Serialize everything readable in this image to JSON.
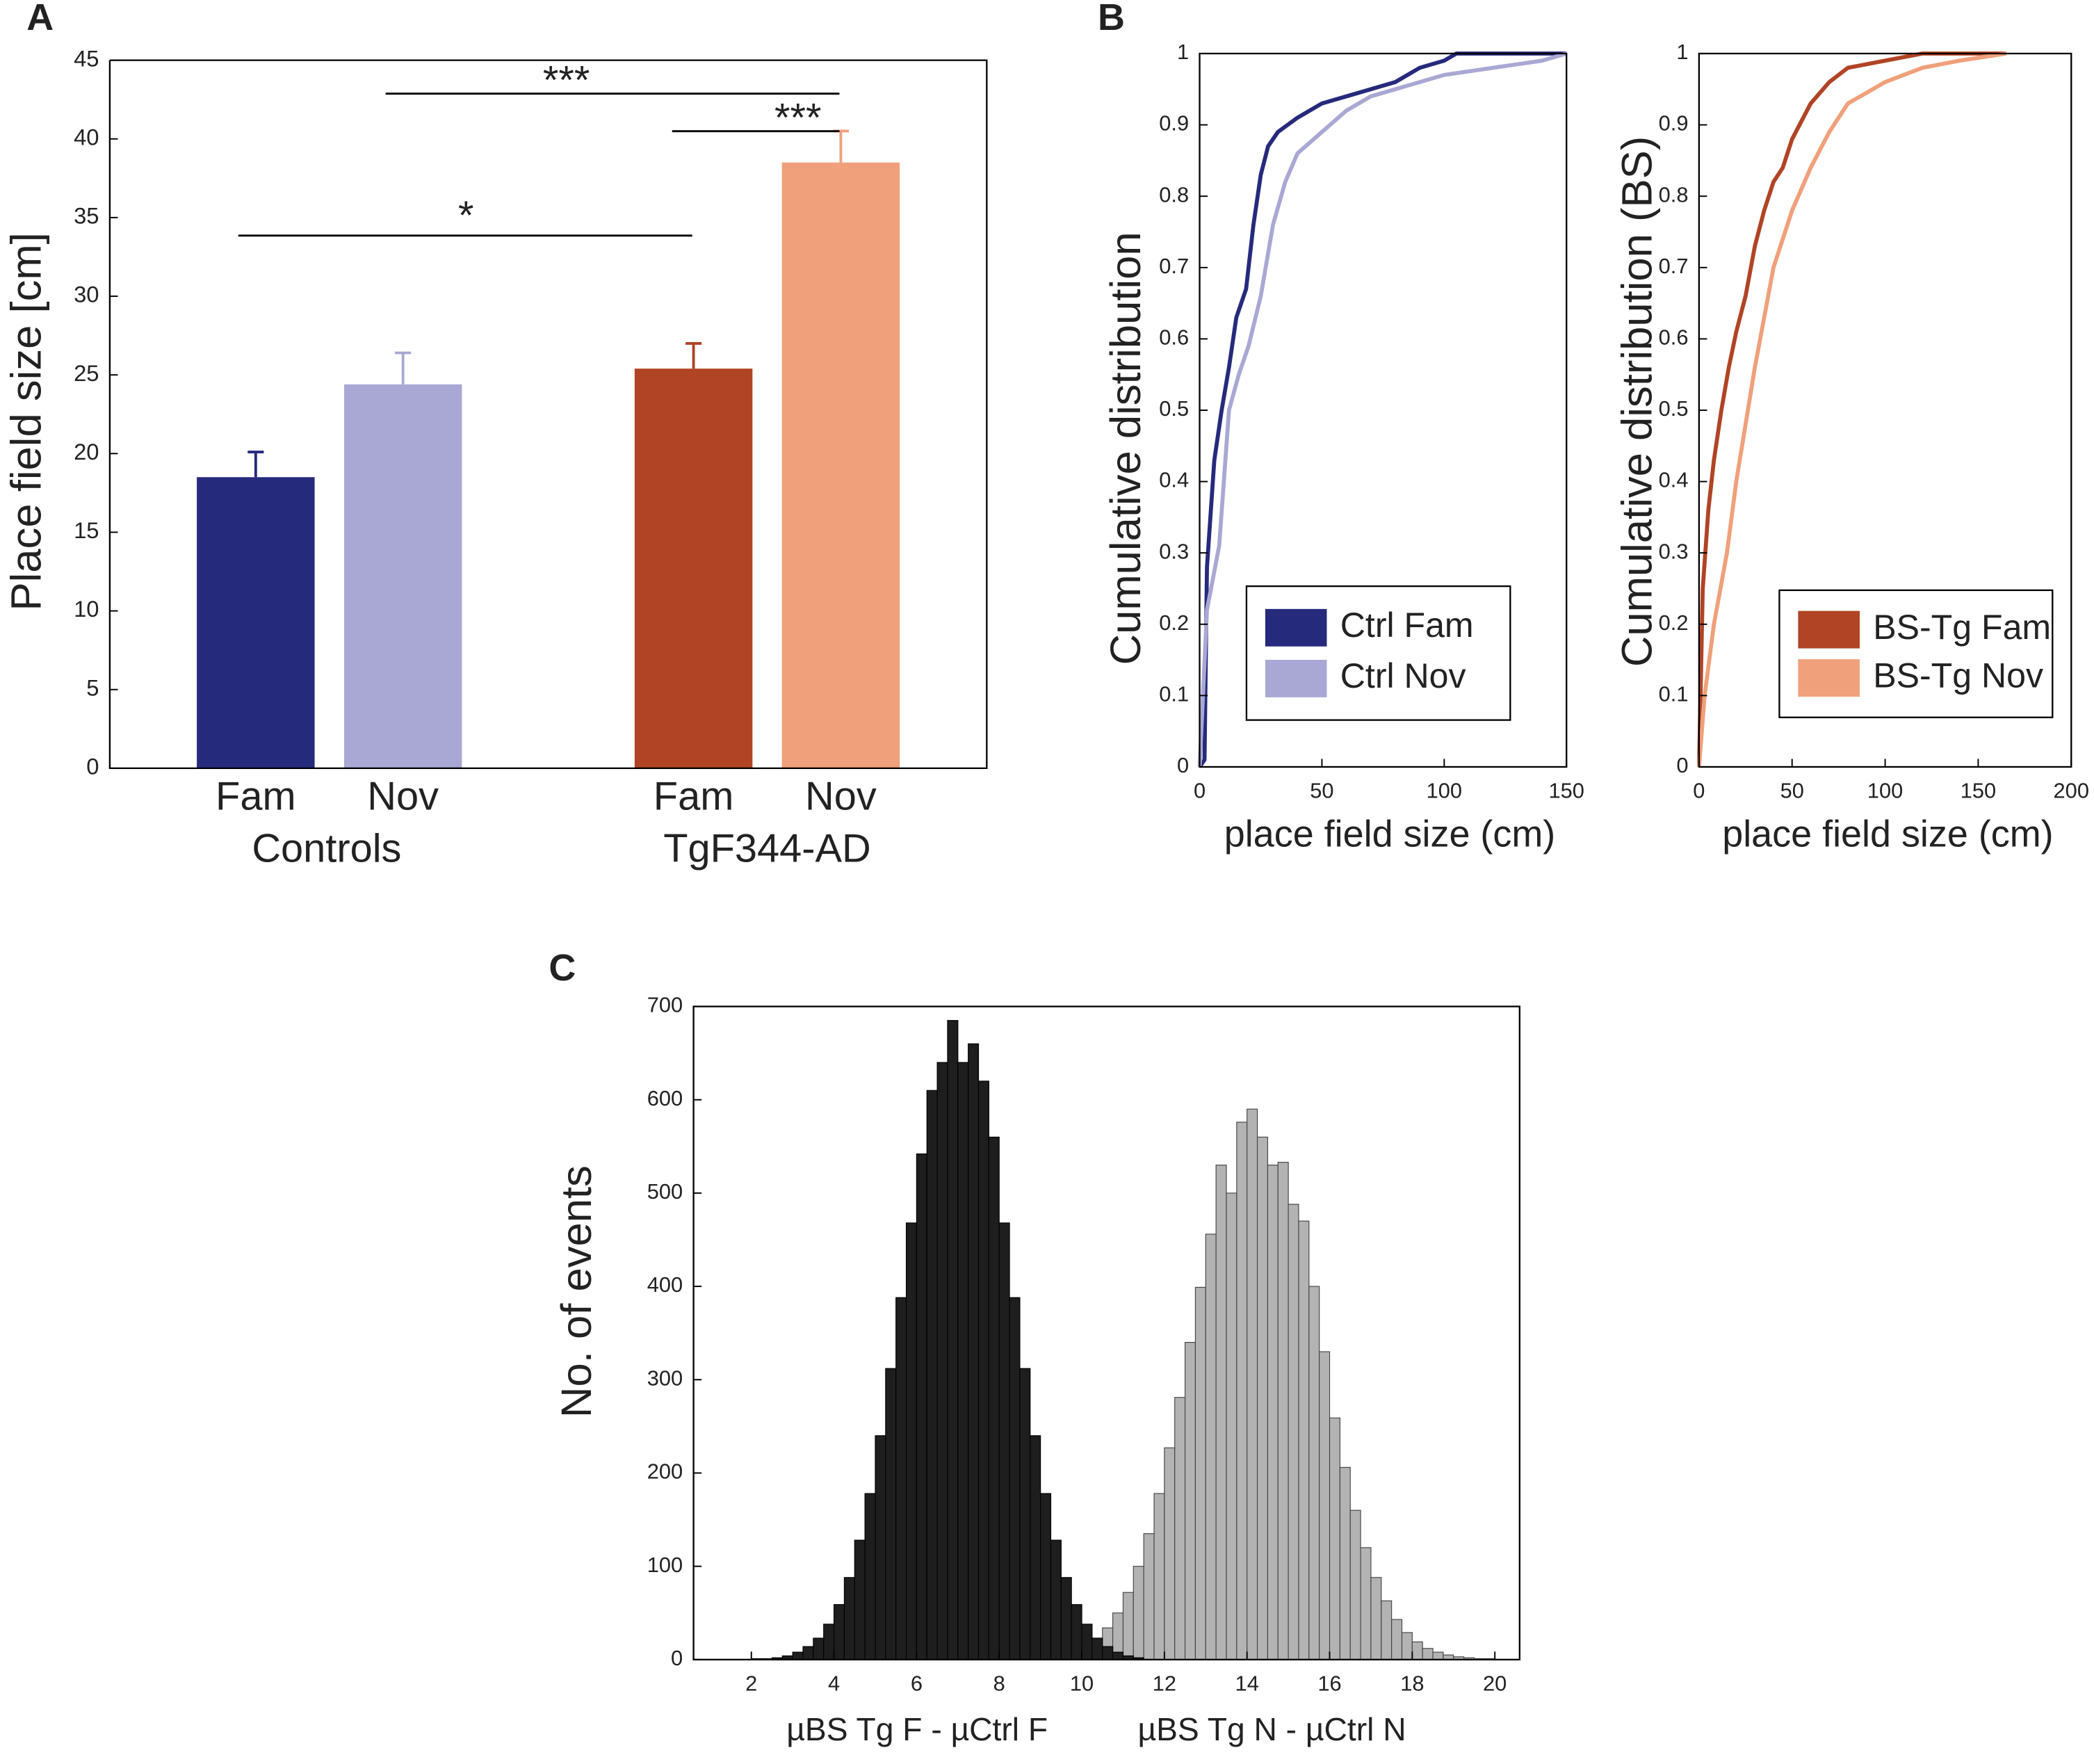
{
  "panel_labels": [
    "A",
    "B",
    "C"
  ],
  "chart_data": [
    {
      "type": "bar",
      "ylabel": "Place field size [cm]",
      "categories": [
        "Fam",
        "Nov",
        "Fam",
        "Nov"
      ],
      "groups": [
        "Controls",
        "TgF344-AD"
      ],
      "values": [
        18.5,
        24.4,
        25.4,
        38.5
      ],
      "errors": [
        1.6,
        2.0,
        1.6,
        2.0
      ],
      "colors": [
        "#262a7c",
        "#a9a8d4",
        "#b04425",
        "#f0a07a"
      ],
      "annotations": [
        "*",
        "***",
        "***"
      ],
      "ylim": [
        0,
        45
      ],
      "yticks": [
        0,
        5,
        10,
        15,
        20,
        25,
        30,
        35,
        40,
        45
      ],
      "grid": false
    },
    {
      "type": "line",
      "xlabel": "place field size (cm)",
      "ylabel": "Cumulative distribution",
      "series": [
        {
          "name": "Ctrl Fam",
          "color": "#262a7c",
          "x": [
            0,
            2,
            3,
            6,
            9,
            12,
            15,
            19,
            22,
            25,
            28,
            32,
            40,
            50,
            60,
            70,
            80,
            90,
            100,
            105,
            150
          ],
          "values": [
            0,
            0.01,
            0.28,
            0.43,
            0.5,
            0.56,
            0.63,
            0.67,
            0.76,
            0.83,
            0.87,
            0.89,
            0.91,
            0.93,
            0.94,
            0.95,
            0.96,
            0.98,
            0.99,
            1,
            1
          ]
        },
        {
          "name": "Ctrl Nov",
          "color": "#a9a8d4",
          "x": [
            0,
            3,
            8,
            12,
            16,
            20,
            25,
            30,
            35,
            40,
            50,
            60,
            70,
            80,
            100,
            120,
            140,
            150
          ],
          "values": [
            0,
            0.22,
            0.31,
            0.5,
            0.55,
            0.59,
            0.66,
            0.76,
            0.82,
            0.86,
            0.89,
            0.92,
            0.94,
            0.95,
            0.97,
            0.98,
            0.99,
            1
          ]
        }
      ],
      "xlim": [
        0,
        150
      ],
      "xticks": [
        0,
        50,
        100,
        150
      ],
      "ylim": [
        0,
        1
      ],
      "yticks": [
        0,
        0.1,
        0.2,
        0.3,
        0.4,
        0.5,
        0.6,
        0.7,
        0.8,
        0.9,
        1
      ],
      "legend": "lower right"
    },
    {
      "type": "line",
      "xlabel": "place field size (cm)",
      "ylabel": "Cumulative distribution (BS)",
      "series": [
        {
          "name": "BS-Tg Fam",
          "color": "#b04425",
          "x": [
            0,
            2,
            5,
            8,
            12,
            16,
            20,
            25,
            30,
            35,
            40,
            45,
            50,
            60,
            70,
            80,
            100,
            120,
            165
          ],
          "values": [
            0,
            0.25,
            0.36,
            0.43,
            0.5,
            0.56,
            0.61,
            0.66,
            0.73,
            0.78,
            0.82,
            0.84,
            0.88,
            0.93,
            0.96,
            0.98,
            0.99,
            1,
            1
          ]
        },
        {
          "name": "BS-Tg Nov",
          "color": "#f0a07a",
          "x": [
            0,
            3,
            8,
            15,
            20,
            25,
            30,
            35,
            40,
            50,
            60,
            70,
            80,
            100,
            120,
            140,
            165
          ],
          "values": [
            0,
            0.1,
            0.2,
            0.3,
            0.4,
            0.48,
            0.56,
            0.63,
            0.7,
            0.78,
            0.84,
            0.89,
            0.93,
            0.96,
            0.98,
            0.99,
            1
          ]
        }
      ],
      "xlim": [
        0,
        200
      ],
      "xticks": [
        0,
        50,
        100,
        150,
        200
      ],
      "ylim": [
        0,
        1
      ],
      "yticks": [
        0,
        0.1,
        0.2,
        0.3,
        0.4,
        0.5,
        0.6,
        0.7,
        0.8,
        0.9,
        1
      ],
      "legend": "lower right"
    },
    {
      "type": "histogram",
      "ylabel": "No. of events",
      "series": [
        {
          "name": "µBS Tg F - µCtrl F",
          "color": "#1e1e1e",
          "bins": [
            2,
            2.25,
            2.5,
            2.75,
            3,
            3.25,
            3.5,
            3.75,
            4,
            4.25,
            4.5,
            4.75,
            5,
            5.25,
            5.5,
            5.75,
            6,
            6.25,
            6.5,
            6.75,
            7,
            7.25,
            7.5,
            7.75,
            8,
            8.25,
            8.5,
            8.75,
            9,
            9.25,
            9.5,
            9.75,
            10,
            10.25,
            10.5,
            10.75,
            11,
            11.25,
            11.5
          ],
          "values": [
            1,
            1,
            2,
            4,
            8,
            14,
            23,
            38,
            59,
            88,
            128,
            178,
            240,
            312,
            388,
            468,
            542,
            610,
            640,
            685,
            640,
            660,
            620,
            560,
            468,
            388,
            312,
            240,
            178,
            128,
            88,
            59,
            38,
            23,
            14,
            8,
            4,
            2
          ]
        },
        {
          "name": "µBS Tg N - µCtrl N",
          "color": "#b3b3b3",
          "bins": [
            9.5,
            9.75,
            10,
            10.25,
            10.5,
            10.75,
            11,
            11.25,
            11.5,
            11.75,
            12,
            12.25,
            12.5,
            12.75,
            13,
            13.25,
            13.5,
            13.75,
            14,
            14.25,
            14.5,
            14.75,
            15,
            15.25,
            15.5,
            15.75,
            16,
            16.25,
            16.5,
            16.75,
            17,
            17.25,
            17.5,
            17.75,
            18,
            18.25,
            18.5,
            18.75,
            19,
            19.25,
            19.5,
            19.75,
            20,
            20.25,
            20.5
          ],
          "values": [
            6,
            9,
            15,
            23,
            34,
            50,
            72,
            100,
            135,
            178,
            227,
            281,
            340,
            399,
            456,
            530,
            500,
            576,
            590,
            560,
            530,
            533,
            488,
            470,
            400,
            330,
            259,
            206,
            160,
            120,
            88,
            63,
            43,
            29,
            19,
            12,
            8,
            5,
            3,
            2,
            1,
            1,
            0,
            0
          ]
        }
      ],
      "xlim": [
        0.6,
        20.6
      ],
      "xticks": [
        2,
        4,
        6,
        8,
        10,
        12,
        14,
        16,
        18,
        20
      ],
      "ylim": [
        0,
        700
      ],
      "yticks": [
        0,
        100,
        200,
        300,
        400,
        500,
        600,
        700
      ]
    }
  ]
}
